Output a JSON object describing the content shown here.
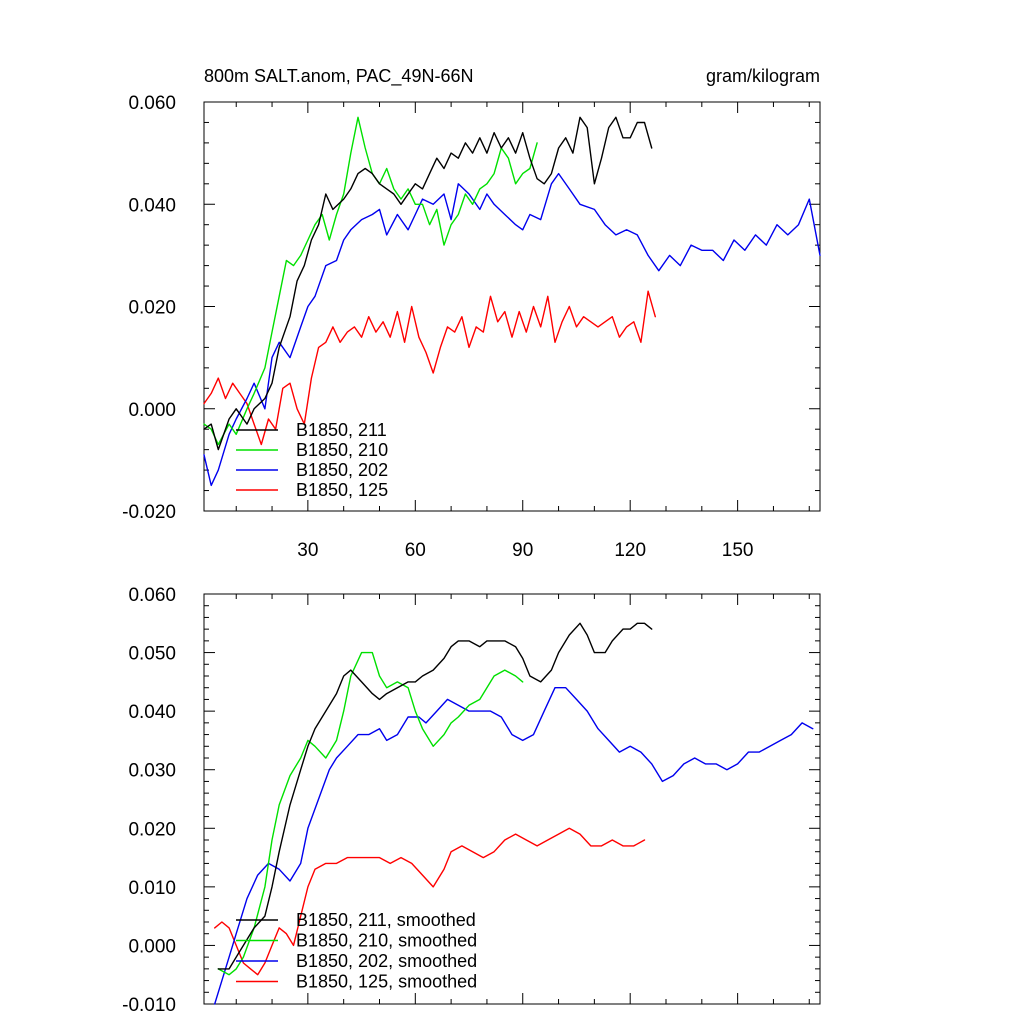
{
  "figure": {
    "title_left": "800m SALT.anom, PAC_49N-66N",
    "title_right": "gram/kilogram"
  },
  "colors": {
    "211": "#000000",
    "210": "#00e000",
    "202": "#0000ee",
    "125": "#ff0000"
  },
  "chart_data": [
    {
      "type": "line",
      "title": "800m SALT.anom, PAC_49N-66N",
      "units": "gram/kilogram",
      "xlim": [
        1,
        173
      ],
      "ylim": [
        -0.02,
        0.06
      ],
      "yticks": [
        "0.060",
        "0.040",
        "0.020",
        "0.000",
        "-0.020"
      ],
      "ytick_values": [
        0.06,
        0.04,
        0.02,
        0.0,
        -0.02
      ],
      "xticks": [
        "30",
        "60",
        "90",
        "120",
        "150"
      ],
      "xtick_values": [
        30,
        60,
        90,
        120,
        150
      ],
      "legend_position": "bottom-left",
      "series": [
        {
          "id": "211",
          "name": "B1850, 211",
          "x": [
            1,
            3,
            5,
            8,
            10,
            13,
            15,
            18,
            20,
            22,
            25,
            27,
            29,
            31,
            33,
            35,
            37,
            40,
            42,
            44,
            46,
            48,
            50,
            52,
            54,
            56,
            58,
            60,
            62,
            64,
            66,
            68,
            70,
            72,
            74,
            76,
            78,
            80,
            82,
            84,
            86,
            88,
            90,
            92,
            94,
            96,
            98,
            100,
            102,
            104,
            106,
            108,
            110,
            112,
            114,
            116,
            118,
            120,
            122,
            124,
            126
          ],
          "y": [
            -0.004,
            -0.003,
            -0.008,
            -0.002,
            0.0,
            -0.003,
            0.0,
            0.002,
            0.005,
            0.012,
            0.018,
            0.025,
            0.028,
            0.033,
            0.036,
            0.042,
            0.039,
            0.041,
            0.043,
            0.046,
            0.047,
            0.046,
            0.044,
            0.043,
            0.042,
            0.04,
            0.042,
            0.044,
            0.043,
            0.046,
            0.049,
            0.047,
            0.05,
            0.049,
            0.052,
            0.05,
            0.053,
            0.05,
            0.054,
            0.051,
            0.053,
            0.05,
            0.054,
            0.049,
            0.045,
            0.044,
            0.046,
            0.051,
            0.053,
            0.05,
            0.057,
            0.055,
            0.044,
            0.049,
            0.055,
            0.057,
            0.053,
            0.053,
            0.056,
            0.056,
            0.051
          ]
        },
        {
          "id": "210",
          "name": "B1850, 210",
          "x": [
            1,
            3,
            5,
            8,
            10,
            13,
            15,
            18,
            20,
            22,
            24,
            26,
            28,
            30,
            32,
            34,
            36,
            38,
            40,
            42,
            44,
            46,
            48,
            50,
            52,
            54,
            56,
            58,
            60,
            62,
            64,
            66,
            68,
            70,
            72,
            74,
            76,
            78,
            80,
            82,
            84,
            86,
            88,
            90,
            92,
            94
          ],
          "y": [
            -0.003,
            -0.004,
            -0.007,
            -0.003,
            -0.005,
            0.0,
            0.003,
            0.008,
            0.015,
            0.022,
            0.029,
            0.028,
            0.03,
            0.033,
            0.036,
            0.038,
            0.033,
            0.038,
            0.042,
            0.05,
            0.057,
            0.051,
            0.046,
            0.044,
            0.047,
            0.043,
            0.041,
            0.043,
            0.04,
            0.04,
            0.036,
            0.039,
            0.032,
            0.036,
            0.038,
            0.042,
            0.04,
            0.043,
            0.044,
            0.046,
            0.051,
            0.049,
            0.044,
            0.046,
            0.047,
            0.052
          ]
        },
        {
          "id": "202",
          "name": "B1850, 202",
          "x": [
            1,
            3,
            5,
            8,
            10,
            13,
            15,
            18,
            20,
            22,
            25,
            28,
            30,
            32,
            35,
            38,
            40,
            42,
            45,
            48,
            50,
            52,
            55,
            58,
            60,
            62,
            65,
            68,
            70,
            72,
            75,
            78,
            80,
            82,
            85,
            88,
            90,
            92,
            95,
            98,
            100,
            103,
            106,
            110,
            113,
            116,
            119,
            122,
            125,
            128,
            131,
            134,
            137,
            140,
            143,
            146,
            149,
            152,
            155,
            158,
            161,
            164,
            167,
            170,
            173
          ],
          "y": [
            -0.009,
            -0.015,
            -0.012,
            -0.005,
            -0.002,
            0.002,
            0.005,
            0.0,
            0.01,
            0.013,
            0.01,
            0.016,
            0.02,
            0.022,
            0.028,
            0.029,
            0.033,
            0.035,
            0.037,
            0.038,
            0.039,
            0.034,
            0.038,
            0.035,
            0.038,
            0.041,
            0.04,
            0.042,
            0.037,
            0.044,
            0.042,
            0.039,
            0.042,
            0.04,
            0.038,
            0.036,
            0.035,
            0.038,
            0.037,
            0.044,
            0.046,
            0.043,
            0.04,
            0.039,
            0.036,
            0.034,
            0.035,
            0.034,
            0.03,
            0.027,
            0.03,
            0.028,
            0.032,
            0.031,
            0.031,
            0.029,
            0.033,
            0.031,
            0.034,
            0.032,
            0.036,
            0.034,
            0.036,
            0.041,
            0.03
          ]
        },
        {
          "id": "125",
          "name": "B1850, 125",
          "x": [
            1,
            3,
            5,
            7,
            9,
            11,
            13,
            15,
            17,
            19,
            21,
            23,
            25,
            27,
            29,
            31,
            33,
            35,
            37,
            39,
            41,
            43,
            45,
            47,
            49,
            51,
            53,
            55,
            57,
            59,
            61,
            63,
            65,
            67,
            69,
            71,
            73,
            75,
            77,
            79,
            81,
            83,
            85,
            87,
            89,
            91,
            93,
            95,
            97,
            99,
            101,
            103,
            105,
            107,
            109,
            111,
            113,
            115,
            117,
            119,
            121,
            123,
            125,
            127
          ],
          "y": [
            0.001,
            0.003,
            0.006,
            0.002,
            0.005,
            0.003,
            0.001,
            -0.003,
            -0.007,
            -0.002,
            -0.004,
            0.004,
            0.005,
            0.0,
            -0.003,
            0.006,
            0.012,
            0.013,
            0.016,
            0.013,
            0.015,
            0.016,
            0.014,
            0.018,
            0.015,
            0.017,
            0.014,
            0.019,
            0.013,
            0.02,
            0.014,
            0.011,
            0.007,
            0.012,
            0.016,
            0.015,
            0.018,
            0.012,
            0.016,
            0.015,
            0.022,
            0.017,
            0.019,
            0.014,
            0.019,
            0.015,
            0.02,
            0.016,
            0.022,
            0.013,
            0.017,
            0.02,
            0.016,
            0.018,
            0.017,
            0.016,
            0.017,
            0.018,
            0.014,
            0.016,
            0.017,
            0.013,
            0.023,
            0.018
          ]
        }
      ]
    },
    {
      "type": "line",
      "title": "",
      "units": "gram/kilogram",
      "xlim": [
        1,
        173
      ],
      "ylim": [
        -0.01,
        0.06
      ],
      "yticks": [
        "0.060",
        "0.050",
        "0.040",
        "0.030",
        "0.020",
        "0.010",
        "0.000",
        "-0.010"
      ],
      "ytick_values": [
        0.06,
        0.05,
        0.04,
        0.03,
        0.02,
        0.01,
        0.0,
        -0.01
      ],
      "xtick_values": [
        30,
        60,
        90,
        120,
        150
      ],
      "legend_position": "bottom-left",
      "series": [
        {
          "id": "211",
          "name": "B1850, 211, smoothed",
          "x": [
            5,
            8,
            10,
            12,
            15,
            18,
            20,
            22,
            25,
            28,
            30,
            32,
            35,
            38,
            40,
            42,
            45,
            48,
            50,
            52,
            55,
            58,
            60,
            62,
            65,
            68,
            70,
            72,
            75,
            78,
            80,
            82,
            85,
            88,
            90,
            92,
            95,
            98,
            100,
            103,
            106,
            108,
            110,
            113,
            115,
            118,
            120,
            122,
            124,
            126
          ],
          "y": [
            -0.004,
            -0.004,
            -0.002,
            0.0,
            0.003,
            0.005,
            0.01,
            0.016,
            0.024,
            0.03,
            0.034,
            0.037,
            0.04,
            0.043,
            0.046,
            0.047,
            0.045,
            0.043,
            0.042,
            0.043,
            0.044,
            0.045,
            0.045,
            0.046,
            0.047,
            0.049,
            0.051,
            0.052,
            0.052,
            0.051,
            0.052,
            0.052,
            0.052,
            0.051,
            0.049,
            0.046,
            0.045,
            0.047,
            0.05,
            0.053,
            0.055,
            0.053,
            0.05,
            0.05,
            0.052,
            0.054,
            0.054,
            0.055,
            0.055,
            0.054
          ]
        },
        {
          "id": "210",
          "name": "B1850, 210, smoothed",
          "x": [
            5,
            8,
            10,
            12,
            15,
            18,
            20,
            22,
            25,
            28,
            30,
            32,
            35,
            38,
            40,
            42,
            45,
            48,
            50,
            52,
            55,
            58,
            60,
            62,
            65,
            68,
            70,
            72,
            75,
            78,
            80,
            82,
            85,
            88,
            90
          ],
          "y": [
            -0.004,
            -0.005,
            -0.004,
            -0.002,
            0.003,
            0.01,
            0.018,
            0.024,
            0.029,
            0.032,
            0.035,
            0.034,
            0.032,
            0.035,
            0.04,
            0.046,
            0.05,
            0.05,
            0.046,
            0.044,
            0.045,
            0.044,
            0.04,
            0.037,
            0.034,
            0.036,
            0.038,
            0.039,
            0.041,
            0.042,
            0.044,
            0.046,
            0.047,
            0.046,
            0.045
          ]
        },
        {
          "id": "202",
          "name": "B1850, 202, smoothed",
          "x": [
            4,
            6,
            8,
            10,
            13,
            16,
            19,
            22,
            25,
            28,
            30,
            33,
            36,
            38,
            41,
            44,
            47,
            50,
            52,
            55,
            58,
            61,
            63,
            66,
            69,
            72,
            75,
            78,
            81,
            84,
            87,
            90,
            93,
            96,
            99,
            102,
            105,
            108,
            111,
            114,
            117,
            120,
            123,
            126,
            129,
            132,
            135,
            138,
            141,
            144,
            147,
            150,
            153,
            156,
            159,
            162,
            165,
            168,
            171
          ],
          "y": [
            -0.01,
            -0.006,
            -0.002,
            0.002,
            0.008,
            0.012,
            0.014,
            0.013,
            0.011,
            0.014,
            0.02,
            0.025,
            0.03,
            0.032,
            0.034,
            0.036,
            0.036,
            0.037,
            0.035,
            0.036,
            0.039,
            0.039,
            0.038,
            0.04,
            0.042,
            0.041,
            0.04,
            0.04,
            0.04,
            0.039,
            0.036,
            0.035,
            0.036,
            0.04,
            0.044,
            0.044,
            0.042,
            0.04,
            0.037,
            0.035,
            0.033,
            0.034,
            0.033,
            0.031,
            0.028,
            0.029,
            0.031,
            0.032,
            0.031,
            0.031,
            0.03,
            0.031,
            0.033,
            0.033,
            0.034,
            0.035,
            0.036,
            0.038,
            0.037
          ]
        },
        {
          "id": "125",
          "name": "B1850, 125, smoothed",
          "x": [
            4,
            6,
            8,
            10,
            12,
            14,
            16,
            18,
            20,
            22,
            24,
            26,
            28,
            30,
            32,
            35,
            38,
            41,
            44,
            47,
            50,
            53,
            56,
            59,
            62,
            65,
            68,
            70,
            73,
            76,
            79,
            82,
            85,
            88,
            91,
            94,
            97,
            100,
            103,
            106,
            109,
            112,
            115,
            118,
            121,
            124
          ],
          "y": [
            0.003,
            0.004,
            0.003,
            0.0,
            -0.003,
            -0.004,
            -0.005,
            -0.003,
            0.0,
            0.003,
            0.002,
            0.0,
            0.005,
            0.01,
            0.013,
            0.014,
            0.014,
            0.015,
            0.015,
            0.015,
            0.015,
            0.014,
            0.015,
            0.014,
            0.012,
            0.01,
            0.013,
            0.016,
            0.017,
            0.016,
            0.015,
            0.016,
            0.018,
            0.019,
            0.018,
            0.017,
            0.018,
            0.019,
            0.02,
            0.019,
            0.017,
            0.017,
            0.018,
            0.017,
            0.017,
            0.018
          ]
        }
      ]
    }
  ]
}
